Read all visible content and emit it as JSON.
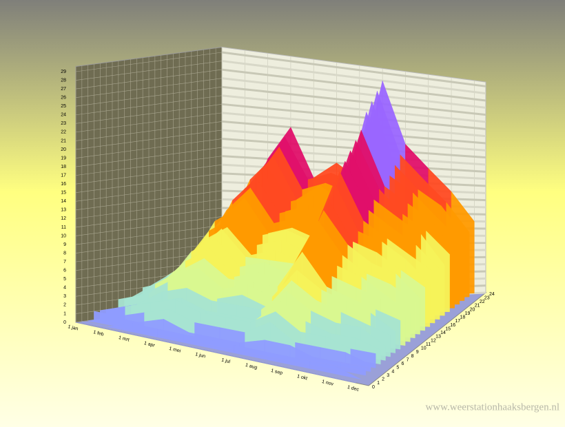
{
  "chart_data": {
    "type": "surface3d",
    "categories": [
      "1 jan",
      "1 feb",
      "1 mrt",
      "1 apr",
      "1 mei",
      "1 jun",
      "1 jul",
      "1 aug",
      "1 sep",
      "1 okt",
      "1 nov",
      "1 dec"
    ],
    "depth_ticks": [
      0,
      1,
      2,
      3,
      4,
      5,
      6,
      7,
      8,
      9,
      10,
      11,
      12,
      13,
      14,
      15,
      16,
      17,
      18,
      19,
      20,
      21,
      22,
      23,
      24
    ],
    "values": [
      [
        0,
        0,
        0,
        0,
        0,
        0,
        0,
        0,
        0,
        0,
        0,
        0
      ],
      [
        0,
        0,
        1,
        1,
        1,
        1,
        1,
        1,
        1,
        1,
        1,
        0
      ],
      [
        0,
        1,
        1,
        2,
        1,
        1,
        1,
        2,
        2,
        1,
        1,
        1
      ],
      [
        1,
        1,
        2,
        3,
        2,
        2,
        2,
        4,
        2,
        2,
        2,
        1
      ],
      [
        1,
        2,
        3,
        4,
        3,
        3,
        3,
        5,
        3,
        3,
        2,
        2
      ],
      [
        1,
        2,
        3,
        4,
        3,
        3,
        3,
        6,
        4,
        3,
        3,
        2
      ],
      [
        1,
        2,
        4,
        5,
        4,
        4,
        4,
        7,
        5,
        4,
        4,
        2
      ],
      [
        2,
        3,
        5,
        6,
        4,
        5,
        4,
        8,
        6,
        5,
        4,
        3
      ],
      [
        2,
        3,
        6,
        7,
        5,
        6,
        5,
        9,
        7,
        6,
        5,
        3
      ],
      [
        2,
        4,
        6,
        8,
        6,
        6,
        6,
        11,
        7,
        6,
        5,
        4
      ],
      [
        2,
        4,
        7,
        9,
        6,
        7,
        6,
        12,
        8,
        7,
        6,
        4
      ],
      [
        3,
        4,
        8,
        10,
        7,
        8,
        7,
        13,
        9,
        8,
        6,
        4
      ],
      [
        3,
        5,
        8,
        11,
        8,
        8,
        8,
        14,
        10,
        8,
        7,
        5
      ],
      [
        3,
        5,
        9,
        11,
        8,
        9,
        8,
        15,
        11,
        9,
        8,
        5
      ],
      [
        3,
        6,
        10,
        12,
        9,
        10,
        9,
        16,
        11,
        10,
        8,
        6
      ],
      [
        4,
        6,
        11,
        13,
        10,
        11,
        10,
        18,
        12,
        11,
        9,
        6
      ],
      [
        4,
        7,
        11,
        14,
        10,
        11,
        10,
        19,
        13,
        11,
        9,
        7
      ],
      [
        4,
        7,
        12,
        15,
        11,
        12,
        11,
        20,
        14,
        12,
        10,
        7
      ],
      [
        4,
        7,
        13,
        16,
        12,
        13,
        12,
        21,
        15,
        13,
        11,
        7
      ],
      [
        4,
        8,
        13,
        17,
        12,
        13,
        12,
        22,
        16,
        13,
        11,
        8
      ],
      [
        5,
        8,
        14,
        17,
        13,
        14,
        13,
        23,
        16,
        14,
        12,
        8
      ],
      [
        5,
        9,
        15,
        18,
        13,
        15,
        13,
        25,
        17,
        15,
        12,
        9
      ],
      [
        5,
        9,
        15,
        19,
        14,
        15,
        14,
        26,
        18,
        15,
        13,
        9
      ],
      [
        5,
        9,
        16,
        20,
        15,
        16,
        15,
        27,
        19,
        16,
        13,
        9
      ],
      [
        6,
        10,
        17,
        21,
        15,
        17,
        15,
        28,
        20,
        17,
        14,
        10
      ]
    ],
    "colorscale": [
      [
        0,
        "#8f9cff"
      ],
      [
        3,
        "#a6e4d2"
      ],
      [
        6,
        "#d9f890"
      ],
      [
        9,
        "#f6f25a"
      ],
      [
        12,
        "#ff9a00"
      ],
      [
        16,
        "#ff4a22"
      ],
      [
        20,
        "#e0106a"
      ],
      [
        24,
        "#9a66ff"
      ]
    ],
    "ylim": [
      0,
      29
    ],
    "yticks": [
      0,
      1,
      2,
      3,
      4,
      5,
      6,
      7,
      8,
      9,
      10,
      11,
      12,
      13,
      14,
      15,
      16,
      17,
      18,
      19,
      20,
      21,
      22,
      23,
      24,
      25,
      26,
      27,
      28,
      29
    ],
    "grid": true,
    "watermark": "www.weerstationhaaksbergen.nl"
  }
}
